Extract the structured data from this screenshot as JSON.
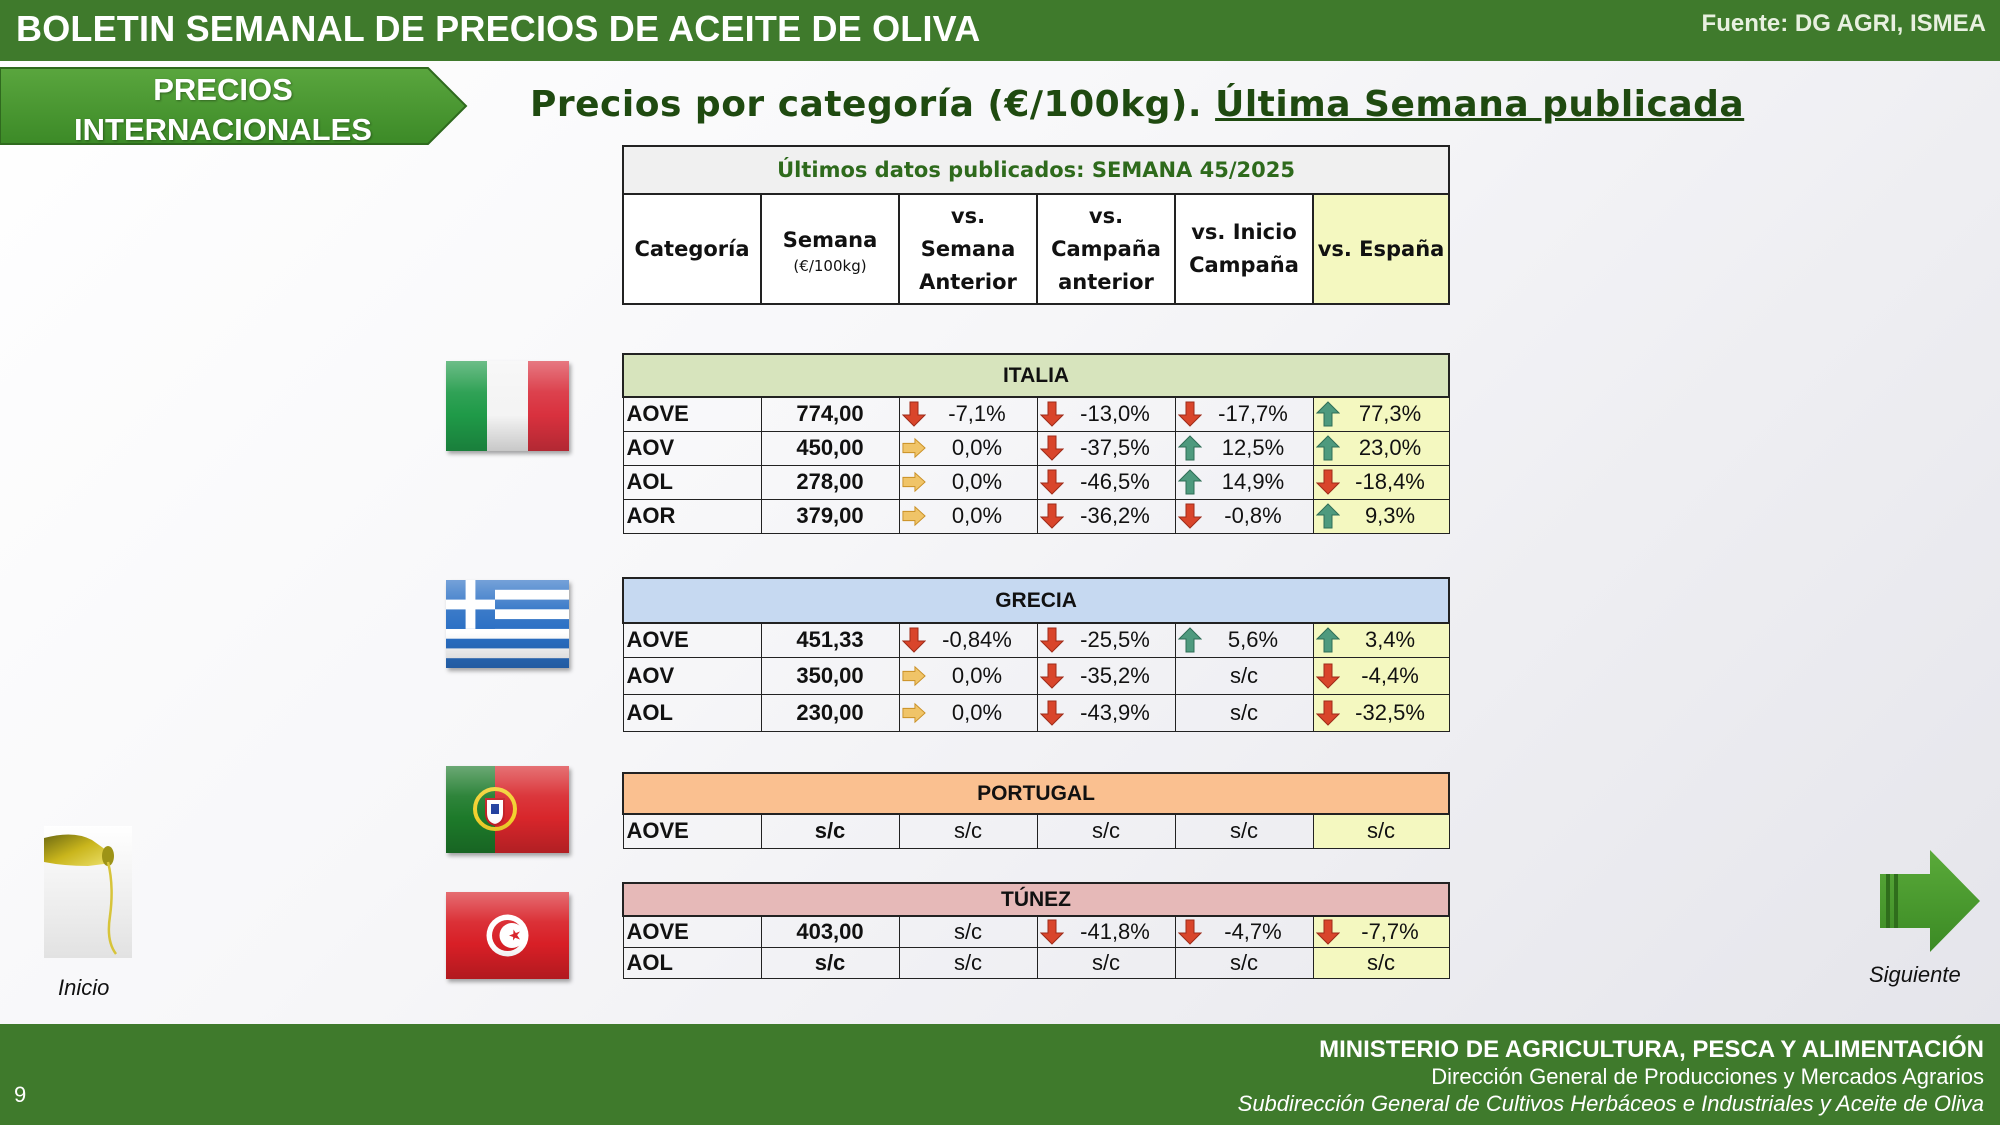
{
  "header": {
    "title": "BOLETIN SEMANAL DE PRECIOS DE ACEITE DE OLIVA",
    "source": "Fuente: DG AGRI, ISMEA"
  },
  "section": {
    "label_line1": "PRECIOS",
    "label_line2": "INTERNACIONALES"
  },
  "subtitle": {
    "part1": "Precios por categoría (€/100kg).",
    "part2": "Última Semana publicada"
  },
  "table_header": {
    "banner": "Últimos datos publicados: SEMANA 45/2025",
    "columns": {
      "categoria": "Categoría",
      "semana": "Semana",
      "semana_unit": "(€/100kg)",
      "vs_semana_1": "vs. Semana",
      "vs_semana_2": "Anterior",
      "vs_campana_1": "vs.",
      "vs_campana_2": "Campaña",
      "vs_campana_3": "anterior",
      "vs_inicio_1": "vs. Inicio",
      "vs_inicio_2": "Campaña",
      "vs_espana": "vs. España"
    }
  },
  "countries": {
    "italia": {
      "name": "ITALIA",
      "rows": [
        {
          "cat": "AOVE",
          "semana": "774,00",
          "vs_sem": "-7,1%",
          "vs_camp": "-13,0%",
          "vs_ini": "-17,7%",
          "vs_esp": "77,3%"
        },
        {
          "cat": "AOV",
          "semana": "450,00",
          "vs_sem": "0,0%",
          "vs_camp": "-37,5%",
          "vs_ini": "12,5%",
          "vs_esp": "23,0%"
        },
        {
          "cat": "AOL",
          "semana": "278,00",
          "vs_sem": "0,0%",
          "vs_camp": "-46,5%",
          "vs_ini": "14,9%",
          "vs_esp": "-18,4%"
        },
        {
          "cat": "AOR",
          "semana": "379,00",
          "vs_sem": "0,0%",
          "vs_camp": "-36,2%",
          "vs_ini": "-0,8%",
          "vs_esp": "9,3%"
        }
      ]
    },
    "grecia": {
      "name": "GRECIA",
      "rows": [
        {
          "cat": "AOVE",
          "semana": "451,33",
          "vs_sem": "-0,84%",
          "vs_camp": "-25,5%",
          "vs_ini": "5,6%",
          "vs_esp": "3,4%"
        },
        {
          "cat": "AOV",
          "semana": "350,00",
          "vs_sem": "0,0%",
          "vs_camp": "-35,2%",
          "vs_ini": "s/c",
          "vs_esp": "-4,4%"
        },
        {
          "cat": "AOL",
          "semana": "230,00",
          "vs_sem": "0,0%",
          "vs_camp": "-43,9%",
          "vs_ini": "s/c",
          "vs_esp": "-32,5%"
        }
      ]
    },
    "portugal": {
      "name": "PORTUGAL",
      "rows": [
        {
          "cat": "AOVE",
          "semana": "s/c",
          "vs_sem": "s/c",
          "vs_camp": "s/c",
          "vs_ini": "s/c",
          "vs_esp": "s/c"
        }
      ]
    },
    "tunez": {
      "name": "TÚNEZ",
      "rows": [
        {
          "cat": "AOVE",
          "semana": "403,00",
          "vs_sem": "s/c",
          "vs_camp": "-41,8%",
          "vs_ini": "-4,7%",
          "vs_esp": "-7,7%"
        },
        {
          "cat": "AOL",
          "semana": "s/c",
          "vs_sem": "s/c",
          "vs_camp": "s/c",
          "vs_ini": "s/c",
          "vs_esp": "s/c"
        }
      ]
    }
  },
  "nav": {
    "inicio": "Inicio",
    "siguiente": "Siguiente"
  },
  "footer": {
    "page": "9",
    "line1": "MINISTERIO DE AGRICULTURA, PESCA Y ALIMENTACIÓN",
    "line2": "Dirección General de Producciones y Mercados Agrarios",
    "line3": "Subdirección General de Cultivos Herbáceos e Industriales y Aceite de Oliva"
  },
  "colors": {
    "brand_green": "#3f7a2c",
    "italia": "#d7e4bd",
    "grecia": "#c6d9f1",
    "portugal": "#fac090",
    "tunez": "#e6b9b8",
    "arrow_up": "#4e9a7e",
    "arrow_down": "#d9452b",
    "arrow_flat": "#e8b04a"
  },
  "icons": {
    "up": "arrow-up-icon",
    "down": "arrow-down-icon",
    "flat": "arrow-right-icon"
  }
}
